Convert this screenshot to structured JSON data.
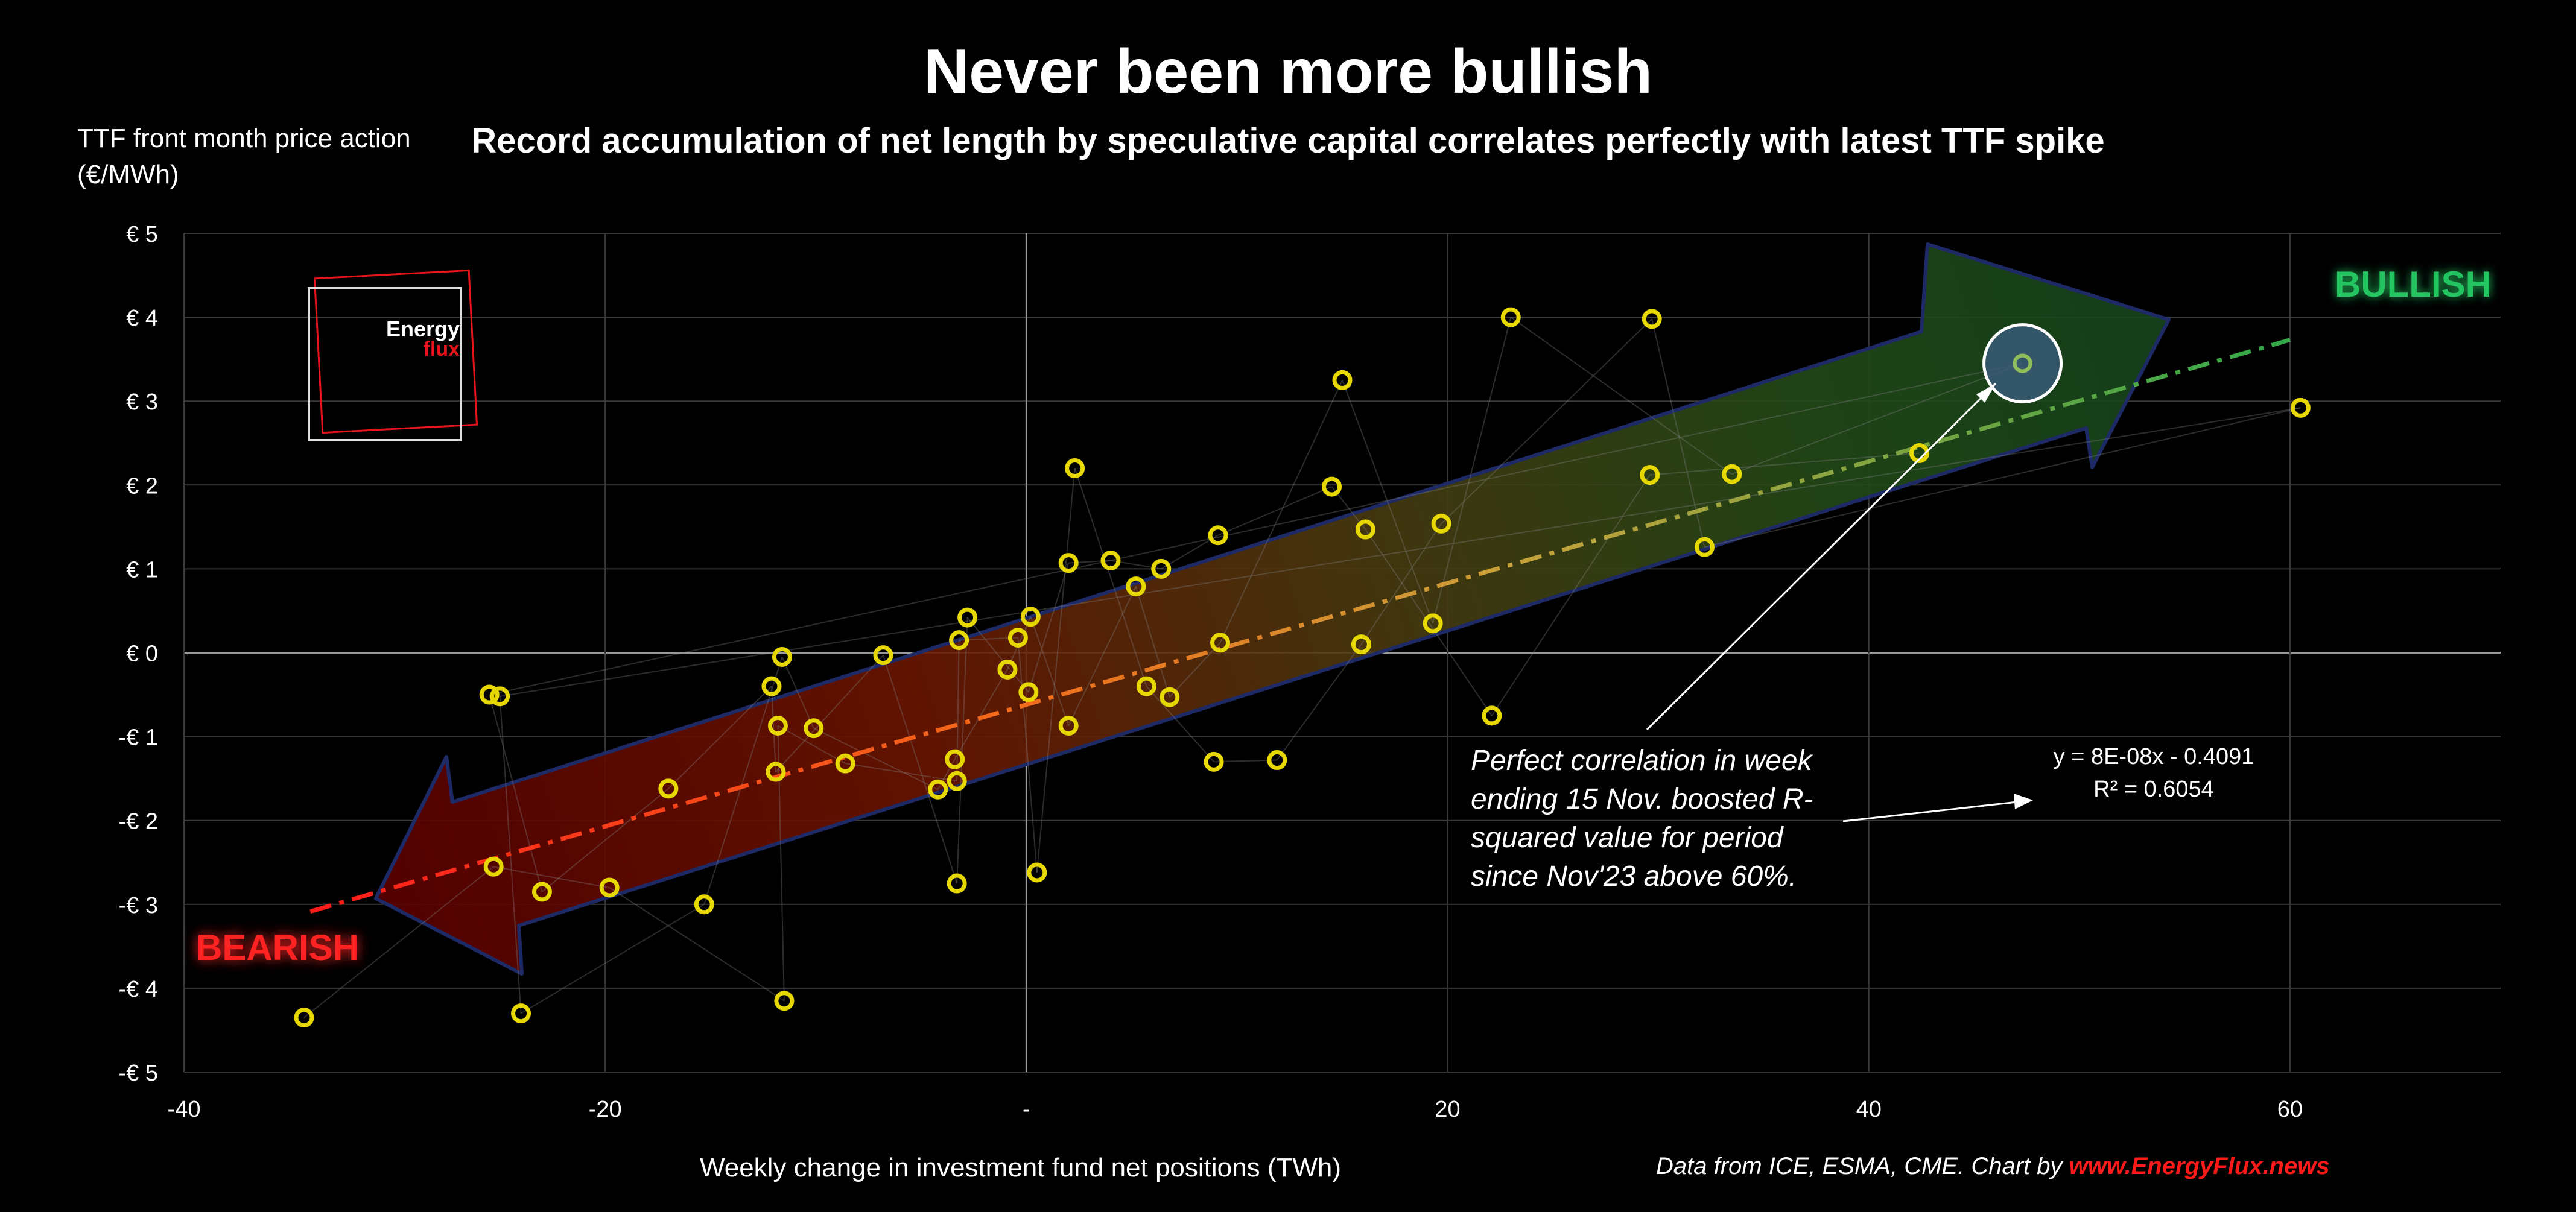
{
  "chart_data": {
    "type": "scatter",
    "title": "Never been more bullish",
    "subtitle": "Record accumulation of net length by speculative capital correlates perfectly with latest TTF spike",
    "ylabel_lines": [
      "TTF front month price action",
      "(€/MWh)"
    ],
    "xlabel": "Weekly change in investment fund net positions (TWh)",
    "xlim": [
      -40,
      70
    ],
    "ylim": [
      -5,
      5
    ],
    "x_ticks": [
      {
        "value": -40,
        "label": "-40"
      },
      {
        "value": -20,
        "label": "-20"
      },
      {
        "value": 0,
        "label": "-"
      },
      {
        "value": 20,
        "label": "20"
      },
      {
        "value": 40,
        "label": "40"
      },
      {
        "value": 60,
        "label": "60"
      }
    ],
    "y_ticks": [
      {
        "value": 5,
        "label": "€ 5"
      },
      {
        "value": 4,
        "label": "€ 4"
      },
      {
        "value": 3,
        "label": "€ 3"
      },
      {
        "value": 2,
        "label": "€ 2"
      },
      {
        "value": 1,
        "label": "€ 1"
      },
      {
        "value": 0,
        "label": "€ 0"
      },
      {
        "value": -1,
        "label": "-€ 1"
      },
      {
        "value": -2,
        "label": "-€ 2"
      },
      {
        "value": -3,
        "label": "-€ 3"
      },
      {
        "value": -4,
        "label": "-€ 4"
      },
      {
        "value": -5,
        "label": "-€ 5"
      }
    ],
    "grid": true,
    "trendline": {
      "equation": "y = 8E-08x - 0.4091",
      "r_squared": "R² = 0.6054",
      "x_from": -34,
      "x_to": 60
    },
    "points": [
      {
        "x": -34.3,
        "y": -4.35
      },
      {
        "x": -25.5,
        "y": -0.5
      },
      {
        "x": -25.0,
        "y": -0.52
      },
      {
        "x": -25.3,
        "y": -2.55
      },
      {
        "x": -23.0,
        "y": -2.85
      },
      {
        "x": -24.0,
        "y": -4.3
      },
      {
        "x": -19.8,
        "y": -2.8
      },
      {
        "x": -17.0,
        "y": -1.62
      },
      {
        "x": -15.3,
        "y": -3.0
      },
      {
        "x": -11.5,
        "y": -4.15
      },
      {
        "x": -12.1,
        "y": -0.4
      },
      {
        "x": -11.6,
        "y": -0.05
      },
      {
        "x": -11.8,
        "y": -0.87
      },
      {
        "x": -11.9,
        "y": -1.42
      },
      {
        "x": -10.1,
        "y": -0.9
      },
      {
        "x": -8.6,
        "y": -1.32
      },
      {
        "x": -6.8,
        "y": -0.03
      },
      {
        "x": -4.2,
        "y": -1.63
      },
      {
        "x": -3.3,
        "y": -1.53
      },
      {
        "x": -3.3,
        "y": -2.75
      },
      {
        "x": -3.4,
        "y": -1.27
      },
      {
        "x": -3.2,
        "y": 0.15
      },
      {
        "x": -2.8,
        "y": 0.42
      },
      {
        "x": -0.9,
        "y": -0.2
      },
      {
        "x": -0.4,
        "y": 0.18
      },
      {
        "x": 0.1,
        "y": -0.47
      },
      {
        "x": 0.2,
        "y": 0.43
      },
      {
        "x": 0.5,
        "y": -2.62
      },
      {
        "x": 2.0,
        "y": 1.07
      },
      {
        "x": 2.0,
        "y": -0.87
      },
      {
        "x": 2.3,
        "y": 2.2
      },
      {
        "x": 4.0,
        "y": 1.1
      },
      {
        "x": 5.2,
        "y": 0.79
      },
      {
        "x": 5.7,
        "y": -0.4
      },
      {
        "x": 6.4,
        "y": 1.0
      },
      {
        "x": 6.8,
        "y": -0.53
      },
      {
        "x": 8.9,
        "y": -1.3
      },
      {
        "x": 9.1,
        "y": 1.4
      },
      {
        "x": 9.2,
        "y": 0.12
      },
      {
        "x": 11.9,
        "y": -1.28
      },
      {
        "x": 14.5,
        "y": 1.98
      },
      {
        "x": 15.0,
        "y": 3.25
      },
      {
        "x": 15.9,
        "y": 0.1
      },
      {
        "x": 16.1,
        "y": 1.47
      },
      {
        "x": 19.3,
        "y": 0.35
      },
      {
        "x": 19.7,
        "y": 1.54
      },
      {
        "x": 22.1,
        "y": -0.75
      },
      {
        "x": 23.0,
        "y": 4.0
      },
      {
        "x": 29.7,
        "y": 3.98
      },
      {
        "x": 29.6,
        "y": 2.12
      },
      {
        "x": 33.5,
        "y": 2.13
      },
      {
        "x": 32.2,
        "y": 1.26
      },
      {
        "x": 42.4,
        "y": 2.38
      },
      {
        "x": 47.3,
        "y": 3.45
      },
      {
        "x": 60.5,
        "y": 2.92
      }
    ],
    "highlight_point": {
      "x": 47.3,
      "y": 3.45
    },
    "bullish_label": "BULLISH",
    "bearish_label": "BEARISH",
    "annotation": "Perfect correlation in week ending 15 Nov. boosted R-squared value for period since Nov'23 above 60%.",
    "logo": {
      "line1": "Energy",
      "line2": "flux"
    },
    "source": {
      "prefix": "Data from ICE, ESMA, CME. Chart by ",
      "link": "www.EnergyFlux.news"
    },
    "colors": {
      "background": "#000000",
      "marker": "#e6d800",
      "bullish": "#22c55e",
      "bearish": "#e8141c",
      "arrow_edge": "#1e2a66",
      "grid": "#3a3a3a"
    }
  }
}
